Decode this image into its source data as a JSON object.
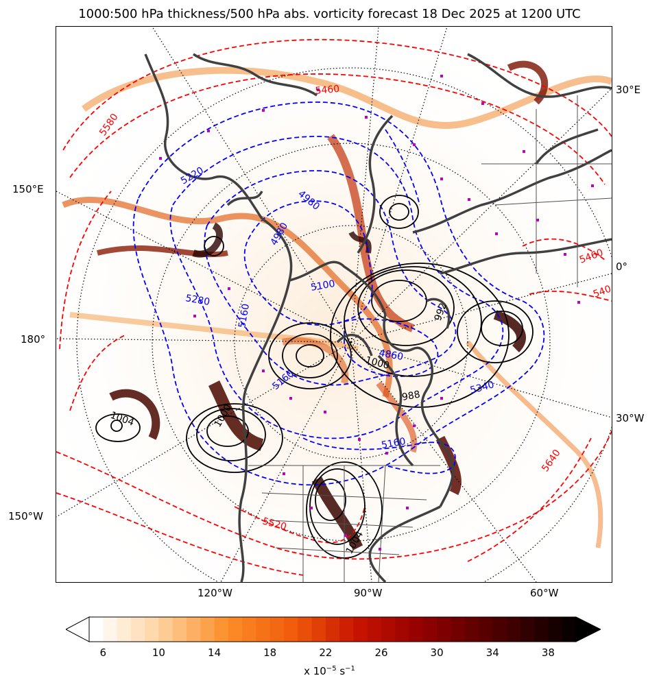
{
  "title": "1000:500 hPa thickness/500 hPa abs. vorticity forecast 18 Dec 2025 at 1200 UTC",
  "longitude_labels": {
    "e30": "30°E",
    "e150": "150°E",
    "zero": "0°",
    "d180": "180°",
    "w30": "30°W",
    "w150": "150°W",
    "w120": "120°W",
    "w90": "90°W",
    "w60": "60°W"
  },
  "thickness_labels": {
    "red": [
      "5460",
      "5580",
      "5340",
      "5640",
      "5520",
      "5460",
      "540"
    ],
    "blue": [
      "5220",
      "4980",
      "5100",
      "5280",
      "5160",
      "5340",
      "4980",
      "5160",
      "5160",
      "4860"
    ]
  },
  "pressure_labels": [
    "1004",
    "1000",
    "988",
    "992",
    "1000",
    "1004"
  ],
  "colorbar": {
    "ticks": [
      "6",
      "10",
      "14",
      "18",
      "22",
      "26",
      "30",
      "34",
      "38"
    ],
    "min": 5,
    "max": 40,
    "step": 1,
    "label_base": "x 10",
    "label_exp": "−5",
    "label_unit": " s",
    "label_exp2": "−1"
  },
  "colors": {
    "thickness_warm": "#ff0000",
    "thickness_cold": "#0000ff",
    "pressure": "#000000",
    "coastline": "#404040",
    "station_markers": "#c000c0"
  }
}
